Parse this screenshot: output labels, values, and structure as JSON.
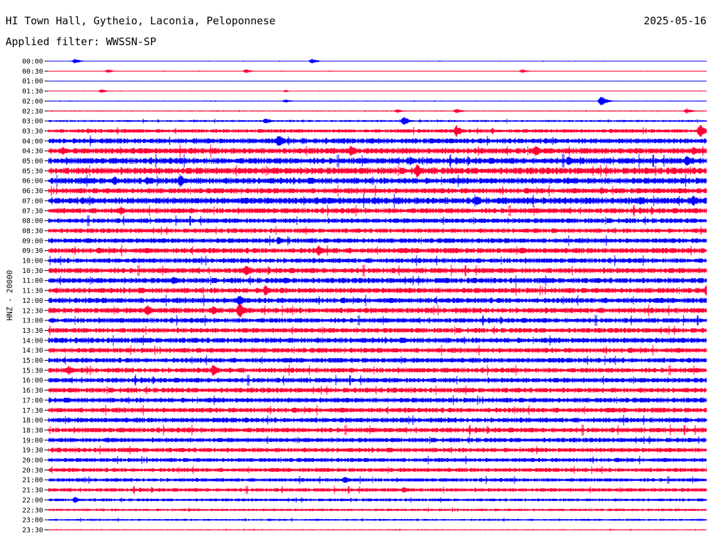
{
  "header": {
    "station": "HI Town Hall, Gytheio, Laconia, Peloponnese",
    "date": "2025-05-16",
    "filter_label": "Applied filter: WWSSN-SP"
  },
  "chart_data": {
    "type": "line",
    "title": "HI Town Hall, Gytheio, Laconia, Peloponnese",
    "ylabel": "HNZ - 20000",
    "xlabel": "",
    "row_labels": [
      "00:00",
      "00:30",
      "01:00",
      "01:30",
      "02:00",
      "02:30",
      "03:00",
      "03:30",
      "04:00",
      "04:30",
      "05:00",
      "05:30",
      "06:00",
      "06:30",
      "07:00",
      "07:30",
      "08:00",
      "08:30",
      "09:00",
      "09:30",
      "10:00",
      "10:30",
      "11:00",
      "11:30",
      "12:00",
      "12:30",
      "13:00",
      "13:30",
      "14:00",
      "14:30",
      "15:00",
      "15:30",
      "16:00",
      "16:30",
      "17:00",
      "17:30",
      "18:00",
      "18:30",
      "19:00",
      "19:30",
      "20:00",
      "20:30",
      "21:00",
      "21:30",
      "22:00",
      "22:30",
      "23:00",
      "23:30"
    ],
    "row_colors": [
      "#0000ff",
      "#ff0033"
    ],
    "noise_level": [
      0.3,
      0.3,
      0.2,
      0.3,
      0.4,
      0.5,
      1.0,
      1.8,
      2.6,
      2.8,
      3.0,
      3.2,
      3.0,
      2.6,
      3.2,
      2.6,
      2.4,
      2.2,
      2.4,
      2.6,
      2.4,
      2.6,
      2.6,
      2.6,
      2.6,
      2.6,
      2.4,
      2.4,
      2.6,
      2.4,
      2.4,
      2.4,
      2.4,
      2.4,
      2.4,
      2.4,
      2.4,
      2.4,
      2.2,
      2.2,
      2.0,
      2.0,
      1.8,
      1.8,
      1.4,
      1.2,
      1.0,
      0.6
    ],
    "events": [
      {
        "row": 0,
        "x": 0.04,
        "a": 4
      },
      {
        "row": 0,
        "x": 0.4,
        "a": 4
      },
      {
        "row": 1,
        "x": 0.09,
        "a": 3
      },
      {
        "row": 1,
        "x": 0.3,
        "a": 3
      },
      {
        "row": 1,
        "x": 0.72,
        "a": 3
      },
      {
        "row": 3,
        "x": 0.08,
        "a": 3
      },
      {
        "row": 3,
        "x": 0.36,
        "a": 2
      },
      {
        "row": 4,
        "x": 0.36,
        "a": 3
      },
      {
        "row": 4,
        "x": 0.84,
        "a": 8
      },
      {
        "row": 5,
        "x": 0.53,
        "a": 3
      },
      {
        "row": 5,
        "x": 0.62,
        "a": 4
      },
      {
        "row": 5,
        "x": 0.97,
        "a": 4
      },
      {
        "row": 6,
        "x": 0.33,
        "a": 5
      },
      {
        "row": 6,
        "x": 0.54,
        "a": 7
      },
      {
        "row": 7,
        "x": 0.06,
        "a": 4
      },
      {
        "row": 7,
        "x": 0.62,
        "a": 9
      },
      {
        "row": 7,
        "x": 0.99,
        "a": 11
      },
      {
        "row": 8,
        "x": 0.35,
        "a": 11
      },
      {
        "row": 9,
        "x": 0.46,
        "a": 9
      },
      {
        "row": 9,
        "x": 0.74,
        "a": 9
      },
      {
        "row": 9,
        "x": 0.98,
        "a": 7
      },
      {
        "row": 10,
        "x": 0.55,
        "a": 7
      },
      {
        "row": 10,
        "x": 0.79,
        "a": 8
      },
      {
        "row": 10,
        "x": 0.97,
        "a": 9
      },
      {
        "row": 11,
        "x": 0.56,
        "a": 10
      },
      {
        "row": 12,
        "x": 0.1,
        "a": 7
      },
      {
        "row": 12,
        "x": 0.15,
        "a": 7
      },
      {
        "row": 12,
        "x": 0.2,
        "a": 10
      },
      {
        "row": 12,
        "x": 0.79,
        "a": 6
      },
      {
        "row": 13,
        "x": 0.84,
        "a": 6
      },
      {
        "row": 13,
        "x": 0.96,
        "a": 6
      },
      {
        "row": 14,
        "x": 0.3,
        "a": 6
      },
      {
        "row": 14,
        "x": 0.65,
        "a": 9
      },
      {
        "row": 14,
        "x": 0.9,
        "a": 8
      },
      {
        "row": 14,
        "x": 0.98,
        "a": 9
      },
      {
        "row": 15,
        "x": 0.11,
        "a": 7
      },
      {
        "row": 17,
        "x": 0.74,
        "a": 4
      },
      {
        "row": 18,
        "x": 0.06,
        "a": 5
      },
      {
        "row": 18,
        "x": 0.35,
        "a": 6
      },
      {
        "row": 19,
        "x": 0.41,
        "a": 9
      },
      {
        "row": 19,
        "x": 0.72,
        "a": 6
      },
      {
        "row": 21,
        "x": 0.3,
        "a": 10
      },
      {
        "row": 22,
        "x": 0.19,
        "a": 7
      },
      {
        "row": 22,
        "x": 0.36,
        "a": 6
      },
      {
        "row": 22,
        "x": 0.6,
        "a": 4
      },
      {
        "row": 22,
        "x": 0.99,
        "a": 5
      },
      {
        "row": 23,
        "x": 0.33,
        "a": 9
      },
      {
        "row": 23,
        "x": 1.0,
        "a": 8
      },
      {
        "row": 24,
        "x": 0.29,
        "a": 9
      },
      {
        "row": 25,
        "x": 0.15,
        "a": 9
      },
      {
        "row": 25,
        "x": 0.25,
        "a": 7
      },
      {
        "row": 25,
        "x": 0.29,
        "a": 12
      },
      {
        "row": 26,
        "x": 0.11,
        "a": 4
      },
      {
        "row": 28,
        "x": 0.02,
        "a": 4
      },
      {
        "row": 31,
        "x": 0.03,
        "a": 8
      },
      {
        "row": 31,
        "x": 0.25,
        "a": 9
      },
      {
        "row": 36,
        "x": 0.3,
        "a": 4
      },
      {
        "row": 38,
        "x": 0.09,
        "a": 4
      },
      {
        "row": 42,
        "x": 0.45,
        "a": 6
      },
      {
        "row": 43,
        "x": 0.54,
        "a": 5
      },
      {
        "row": 44,
        "x": 0.04,
        "a": 5
      }
    ]
  }
}
